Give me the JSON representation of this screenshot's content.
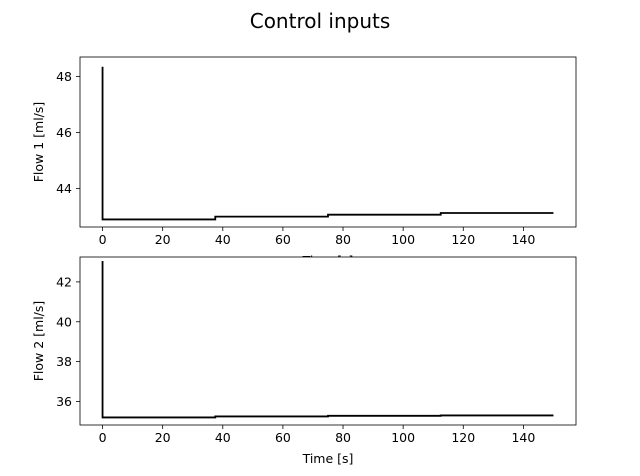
{
  "figure": {
    "title": "Control inputs"
  },
  "chart_data": [
    {
      "type": "line",
      "ylabel": "Flow  1 [ml/s]",
      "xlabel": "Time [s]",
      "xlim": [
        -7.5,
        157.5
      ],
      "ylim": [
        42.63,
        48.7
      ],
      "xticks": [
        0,
        20,
        40,
        60,
        80,
        100,
        120,
        140
      ],
      "xtick_labels": [
        "0",
        "20",
        "40",
        "60",
        "80",
        "100",
        "120",
        "140"
      ],
      "yticks": [
        44,
        46,
        48
      ],
      "ytick_labels": [
        "44",
        "46",
        "48"
      ],
      "line_color": "#000000",
      "step_points": [
        [
          0,
          48.35
        ],
        [
          0,
          42.9
        ],
        [
          37.5,
          42.9
        ],
        [
          37.5,
          43.0
        ],
        [
          75,
          43.0
        ],
        [
          75,
          43.07
        ],
        [
          112.5,
          43.07
        ],
        [
          112.5,
          43.13
        ],
        [
          150,
          43.13
        ]
      ]
    },
    {
      "type": "line",
      "ylabel": "Flow  2 [ml/s]",
      "xlabel": "Time [s]",
      "xlim": [
        -7.5,
        157.5
      ],
      "ylim": [
        34.82,
        43.25
      ],
      "xticks": [
        0,
        20,
        40,
        60,
        80,
        100,
        120,
        140
      ],
      "xtick_labels": [
        "0",
        "20",
        "40",
        "60",
        "80",
        "100",
        "120",
        "140"
      ],
      "yticks": [
        36,
        38,
        40,
        42
      ],
      "ytick_labels": [
        "36",
        "38",
        "40",
        "42"
      ],
      "line_color": "#000000",
      "step_points": [
        [
          0,
          43.05
        ],
        [
          0,
          35.2
        ],
        [
          37.5,
          35.2
        ],
        [
          37.5,
          35.25
        ],
        [
          75,
          35.25
        ],
        [
          75,
          35.28
        ],
        [
          112.5,
          35.28
        ],
        [
          112.5,
          35.3
        ],
        [
          150,
          35.3
        ]
      ]
    }
  ]
}
